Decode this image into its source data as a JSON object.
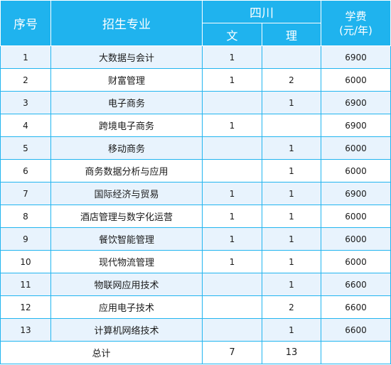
{
  "header": {
    "col_index": "序号",
    "col_major": "招生专业",
    "col_province": "四川",
    "col_arts": "文",
    "col_science": "理",
    "col_fee_line1": "学费",
    "col_fee_line2": "(元/年)"
  },
  "rows": [
    {
      "index": "1",
      "major": "大数据与会计",
      "arts": "1",
      "science": "",
      "fee": "6900"
    },
    {
      "index": "2",
      "major": "财富管理",
      "arts": "1",
      "science": "2",
      "fee": "6000"
    },
    {
      "index": "3",
      "major": "电子商务",
      "arts": "",
      "science": "1",
      "fee": "6900"
    },
    {
      "index": "4",
      "major": "跨境电子商务",
      "arts": "1",
      "science": "",
      "fee": "6900"
    },
    {
      "index": "5",
      "major": "移动商务",
      "arts": "",
      "science": "1",
      "fee": "6000"
    },
    {
      "index": "6",
      "major": "商务数据分析与应用",
      "arts": "",
      "science": "1",
      "fee": "6000"
    },
    {
      "index": "7",
      "major": "国际经济与贸易",
      "arts": "1",
      "science": "1",
      "fee": "6900"
    },
    {
      "index": "8",
      "major": "酒店管理与数字化运营",
      "arts": "1",
      "science": "1",
      "fee": "6000"
    },
    {
      "index": "9",
      "major": "餐饮智能管理",
      "arts": "1",
      "science": "1",
      "fee": "6000"
    },
    {
      "index": "10",
      "major": "现代物流管理",
      "arts": "1",
      "science": "1",
      "fee": "6000"
    },
    {
      "index": "11",
      "major": "物联网应用技术",
      "arts": "",
      "science": "1",
      "fee": "6600"
    },
    {
      "index": "12",
      "major": "应用电子技术",
      "arts": "",
      "science": "2",
      "fee": "6600"
    },
    {
      "index": "13",
      "major": "计算机网络技术",
      "arts": "",
      "science": "1",
      "fee": "6600"
    }
  ],
  "total": {
    "label": "总计",
    "arts": "7",
    "science": "13",
    "fee": ""
  },
  "colors": {
    "header_bg": "#1fb3ee",
    "border": "#22b5f0",
    "row_stripe": "#e8f3fd"
  }
}
